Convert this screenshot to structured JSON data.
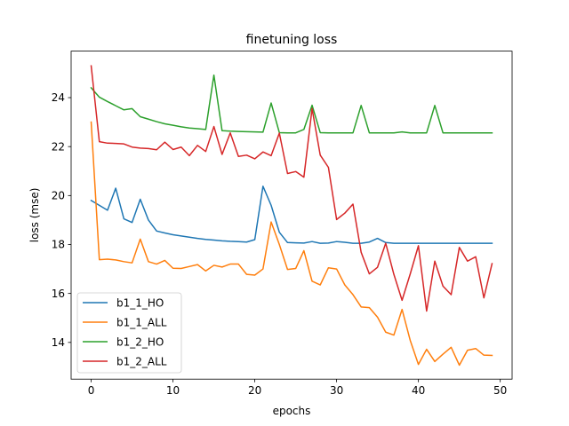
{
  "chart_data": {
    "type": "line",
    "title": "finetuning loss",
    "xlabel": "epochs",
    "ylabel": "loss (mse)",
    "xlim": [
      -2.45,
      51.45
    ],
    "ylim": [
      12.5,
      25.9
    ],
    "xticks": [
      0,
      10,
      20,
      30,
      40,
      50
    ],
    "yticks": [
      14,
      16,
      18,
      20,
      22,
      24
    ],
    "grid": false,
    "legend_location": "lower-left",
    "x": [
      0,
      1,
      2,
      3,
      4,
      5,
      6,
      7,
      8,
      9,
      10,
      11,
      12,
      13,
      14,
      15,
      16,
      17,
      18,
      19,
      20,
      21,
      22,
      23,
      24,
      25,
      26,
      27,
      28,
      29,
      30,
      31,
      32,
      33,
      34,
      35,
      36,
      37,
      38,
      39,
      40,
      41,
      42,
      43,
      44,
      45,
      46,
      47,
      48,
      49
    ],
    "series": [
      {
        "name": "b1_1_HO",
        "color": "#1f77b4",
        "values": [
          19.8,
          19.6,
          19.4,
          20.3,
          19.05,
          18.9,
          19.85,
          19.0,
          18.55,
          18.47,
          18.4,
          18.35,
          18.3,
          18.25,
          18.21,
          18.18,
          18.15,
          18.13,
          18.12,
          18.1,
          18.2,
          20.38,
          19.6,
          18.5,
          18.08,
          18.07,
          18.06,
          18.12,
          18.05,
          18.06,
          18.12,
          18.09,
          18.05,
          18.05,
          18.1,
          18.25,
          18.08,
          18.05,
          18.05,
          18.05,
          18.05,
          18.05,
          18.05,
          18.05,
          18.05,
          18.05,
          18.05,
          18.05,
          18.05,
          18.05
        ]
      },
      {
        "name": "b1_1_ALL",
        "color": "#ff7f0e",
        "values": [
          23.0,
          17.38,
          17.4,
          17.37,
          17.3,
          17.25,
          18.22,
          17.3,
          17.2,
          17.35,
          17.03,
          17.02,
          17.1,
          17.18,
          16.92,
          17.15,
          17.08,
          17.2,
          17.2,
          16.78,
          16.75,
          17.0,
          18.92,
          18.0,
          16.98,
          17.02,
          17.75,
          16.5,
          16.35,
          17.05,
          17.0,
          16.35,
          15.95,
          15.45,
          15.42,
          15.03,
          14.42,
          14.3,
          15.35,
          14.08,
          13.1,
          13.72,
          13.22,
          13.52,
          13.8,
          13.07,
          13.68,
          13.75,
          13.48,
          13.47
        ]
      },
      {
        "name": "b1_2_HO",
        "color": "#2ca02c",
        "values": [
          24.4,
          24.02,
          23.84,
          23.67,
          23.5,
          23.55,
          23.22,
          23.12,
          23.02,
          22.93,
          22.87,
          22.81,
          22.76,
          22.73,
          22.7,
          24.92,
          22.65,
          22.63,
          22.62,
          22.61,
          22.6,
          22.59,
          23.78,
          22.57,
          22.56,
          22.56,
          22.7,
          23.69,
          22.57,
          22.56,
          22.56,
          22.56,
          22.56,
          23.68,
          22.56,
          22.56,
          22.56,
          22.56,
          22.6,
          22.56,
          22.56,
          22.56,
          23.68,
          22.56,
          22.56,
          22.56,
          22.56,
          22.56,
          22.56,
          22.56
        ]
      },
      {
        "name": "b1_2_ALL",
        "color": "#d62728",
        "values": [
          25.3,
          22.2,
          22.14,
          22.13,
          22.11,
          21.98,
          21.94,
          21.92,
          21.87,
          22.18,
          21.88,
          21.98,
          21.63,
          22.05,
          21.8,
          22.82,
          21.68,
          22.56,
          21.6,
          21.65,
          21.5,
          21.78,
          21.63,
          22.55,
          20.9,
          20.98,
          20.75,
          23.55,
          21.65,
          21.15,
          19.02,
          19.28,
          19.65,
          17.68,
          16.8,
          17.07,
          18.05,
          16.78,
          15.72,
          16.8,
          17.95,
          15.28,
          17.32,
          16.3,
          15.95,
          17.88,
          17.32,
          17.5,
          15.82,
          17.22
        ]
      }
    ]
  }
}
